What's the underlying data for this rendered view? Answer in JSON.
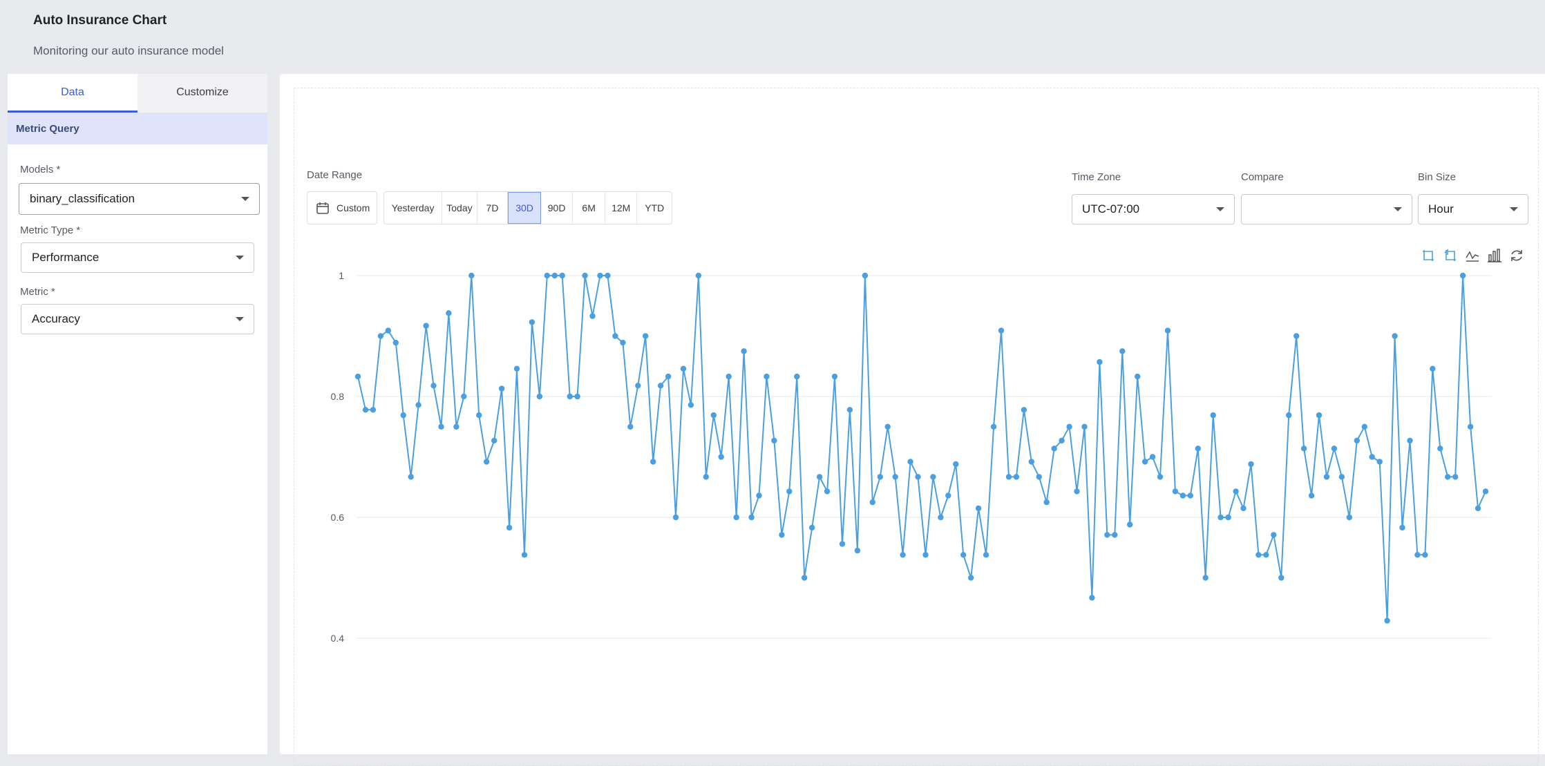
{
  "header": {
    "title": "Auto Insurance Chart",
    "subtitle": "Monitoring our auto insurance model"
  },
  "sidebar": {
    "tabs": [
      {
        "label": "Data",
        "active": true
      },
      {
        "label": "Customize",
        "active": false
      }
    ],
    "section_title": "Metric Query",
    "fields": {
      "models": {
        "label": "Models *",
        "value": "binary_classification"
      },
      "metric_type": {
        "label": "Metric Type *",
        "value": "Performance"
      },
      "metric": {
        "label": "Metric *",
        "value": "Accuracy"
      }
    }
  },
  "controls": {
    "date_range_label": "Date Range",
    "custom_label": "Custom",
    "ranges": [
      "Yesterday",
      "Today",
      "7D",
      "30D",
      "90D",
      "6M",
      "12M",
      "YTD"
    ],
    "active_range": "30D",
    "time_zone_label": "Time Zone",
    "time_zone_value": "UTC-07:00",
    "compare_label": "Compare",
    "compare_value": "",
    "bin_size_label": "Bin Size",
    "bin_size_value": "Hour"
  },
  "toolbar_icons": [
    "zoom-area-icon",
    "zoom-reset-icon",
    "line-chart-icon",
    "bar-chart-icon",
    "refresh-icon"
  ],
  "colors": {
    "accent": "#3c5bd6",
    "series": "#4a9fe0",
    "active_tab_bg": "#d8e2fd"
  },
  "chart_data": {
    "type": "line",
    "title": "",
    "xlabel": "",
    "ylabel": "",
    "ylim": [
      0.2,
      1.0
    ],
    "yticks": [
      "1",
      "0.8",
      "0.6",
      "0.4",
      "0.2"
    ],
    "grid": true,
    "series": [
      {
        "values": [
          0.833,
          0.778,
          0.778,
          0.9,
          0.909,
          0.889,
          0.769,
          0.667,
          0.786,
          0.917,
          0.818,
          0.75,
          0.938,
          0.75,
          0.8,
          1.0,
          0.769,
          0.692,
          0.727,
          0.813,
          0.583,
          0.846,
          0.538,
          0.923,
          0.8,
          1.0,
          1.0,
          1.0,
          0.8,
          0.8,
          1.0,
          0.933,
          1.0,
          1.0,
          0.9,
          0.889,
          0.75,
          0.818,
          0.9,
          0.692,
          0.818,
          0.833,
          0.6,
          0.846,
          0.786,
          1.0,
          0.667,
          0.769,
          0.7,
          0.833,
          0.6,
          0.875,
          0.6,
          0.636,
          0.833,
          0.727,
          0.571,
          0.643,
          0.833,
          0.5,
          0.583,
          0.667,
          0.643,
          0.833,
          0.556,
          0.778,
          0.545,
          1.0,
          0.625,
          0.667,
          0.75,
          0.667,
          0.538,
          0.692,
          0.667,
          0.538,
          0.667,
          0.6,
          0.636,
          0.688,
          0.538,
          0.5,
          0.615,
          0.538,
          0.75,
          0.909,
          0.667,
          0.667,
          0.778,
          0.692,
          0.667,
          0.625,
          0.714,
          0.727,
          0.75,
          0.643,
          0.75,
          0.467,
          0.857,
          0.571,
          0.571,
          0.875,
          0.588,
          0.833,
          0.692,
          0.7,
          0.667,
          0.909,
          0.643,
          0.636,
          0.636,
          0.714,
          0.5,
          0.769,
          0.6,
          0.6,
          0.643,
          0.615,
          0.688,
          0.538,
          0.538,
          0.571,
          0.5,
          0.769,
          0.9,
          0.714,
          0.636,
          0.769,
          0.667,
          0.714,
          0.667,
          0.6,
          0.727,
          0.75,
          0.7,
          0.692,
          0.429,
          0.9,
          0.583,
          0.727,
          0.538,
          0.538,
          0.846,
          0.714,
          0.667,
          0.667,
          1.0,
          0.75,
          0.615,
          0.643
        ]
      }
    ]
  }
}
